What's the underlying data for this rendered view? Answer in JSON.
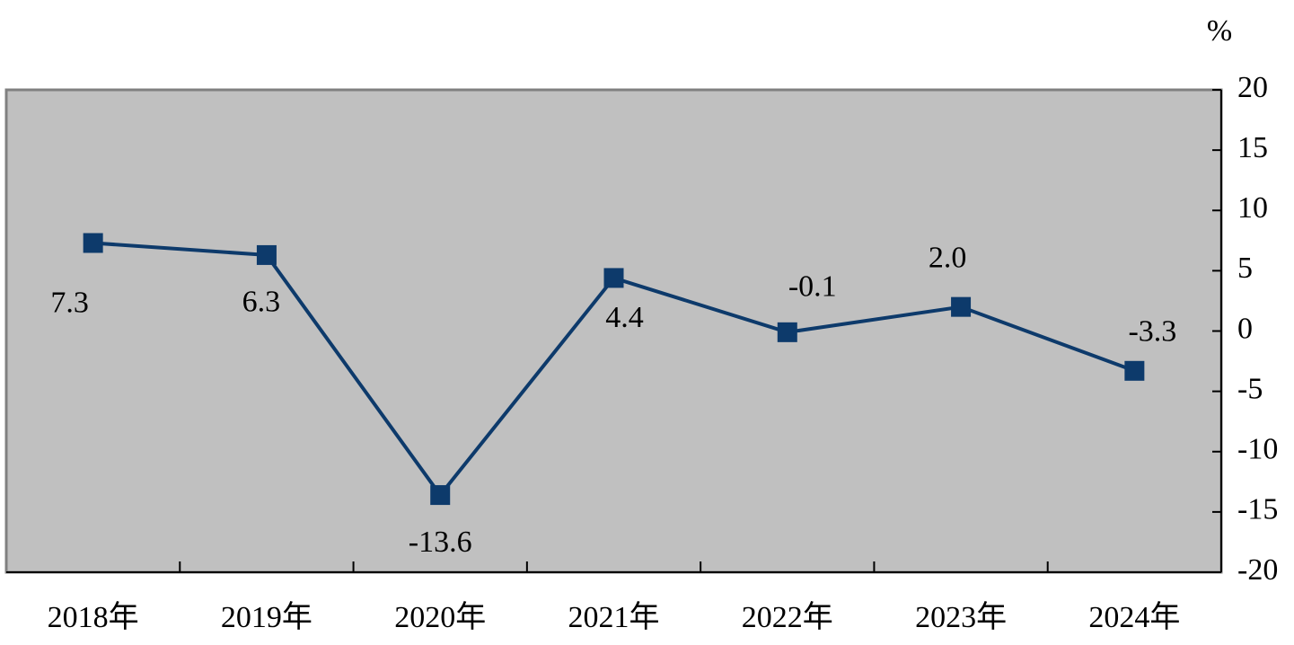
{
  "chart_data": {
    "type": "line",
    "y_unit": "%",
    "categories": [
      "2018年",
      "2019年",
      "2020年",
      "2021年",
      "2022年",
      "2023年",
      "2024年"
    ],
    "values": [
      7.3,
      6.3,
      -13.6,
      4.4,
      -0.1,
      2.0,
      -3.3
    ],
    "value_labels": [
      "7.3",
      "6.3",
      "-13.6",
      "4.4",
      "-0.1",
      "2.0",
      "-3.3"
    ],
    "color": "#0d3a6b",
    "background": "#c0c0c0",
    "ylim": [
      -20,
      20
    ],
    "yticks": [
      -20,
      -15,
      -10,
      -5,
      0,
      5,
      10,
      15,
      20
    ],
    "y_axis_side": "right"
  }
}
